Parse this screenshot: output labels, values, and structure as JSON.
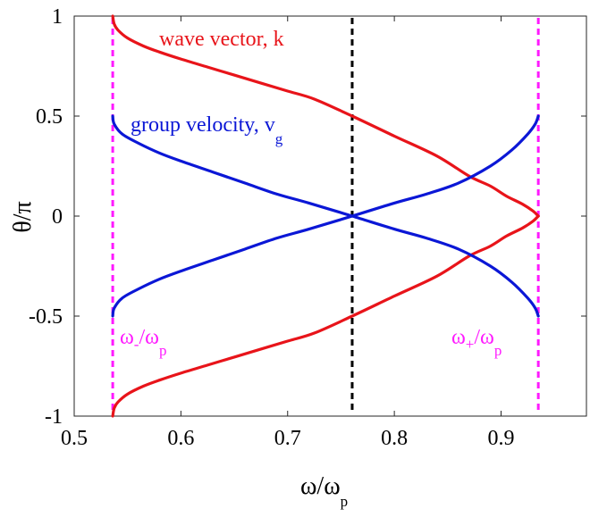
{
  "chart_data": {
    "type": "line",
    "xlabel": {
      "main": "ω/ω",
      "sub": "p"
    },
    "ylabel": {
      "main": "θ/π"
    },
    "xlim": [
      0.5,
      0.98
    ],
    "ylim": [
      -1,
      1
    ],
    "xticks": [
      0.5,
      0.6,
      0.7,
      0.8,
      0.9
    ],
    "xtick_labels": [
      "0.5",
      "0.6",
      "0.7",
      "0.8",
      "0.9"
    ],
    "yticks": [
      -1,
      -0.5,
      0,
      0.5,
      1
    ],
    "ytick_labels": [
      "-1",
      "-0.5",
      "0",
      "0.5",
      "1"
    ],
    "omega_minus": 0.5361,
    "omega_plus": 0.9349,
    "omega_mid": 0.7605,
    "colors": {
      "wave": "#e8141a",
      "group": "#0b17d6",
      "bound": "#ff19ff",
      "mid": "#000000"
    },
    "series": [
      {
        "name": "wave vector, k",
        "color": "#e8141a",
        "x": [
          0.5361,
          0.5375,
          0.541,
          0.55,
          0.565,
          0.58,
          0.6,
          0.625,
          0.65,
          0.675,
          0.7,
          0.725,
          0.7605,
          0.8,
          0.84,
          0.87,
          0.89,
          0.905,
          0.92,
          0.93,
          0.9349
        ],
        "y": [
          1.0,
          0.96,
          0.93,
          0.89,
          0.85,
          0.82,
          0.785,
          0.745,
          0.705,
          0.665,
          0.625,
          0.585,
          0.5,
          0.4,
          0.3,
          0.2,
          0.15,
          0.1,
          0.06,
          0.025,
          0.0
        ]
      },
      {
        "name": "wave vector, k (lower)",
        "color": "#e8141a",
        "x": [
          0.5361,
          0.5375,
          0.541,
          0.55,
          0.565,
          0.58,
          0.6,
          0.625,
          0.65,
          0.675,
          0.7,
          0.725,
          0.7605,
          0.8,
          0.84,
          0.87,
          0.89,
          0.905,
          0.92,
          0.93,
          0.9349
        ],
        "y": [
          -1.0,
          -0.96,
          -0.93,
          -0.89,
          -0.85,
          -0.82,
          -0.785,
          -0.745,
          -0.705,
          -0.665,
          -0.625,
          -0.585,
          -0.5,
          -0.4,
          -0.3,
          -0.2,
          -0.15,
          -0.1,
          -0.06,
          -0.025,
          0.0
        ]
      },
      {
        "name": "group velocity, v",
        "name_sub": "g",
        "color": "#0b17d6",
        "x": [
          0.5361,
          0.5375,
          0.545,
          0.56,
          0.58,
          0.6,
          0.63,
          0.66,
          0.69,
          0.72,
          0.7605,
          0.8,
          0.83,
          0.86,
          0.89,
          0.91,
          0.925,
          0.932,
          0.9349
        ],
        "y": [
          0.5,
          0.46,
          0.41,
          0.365,
          0.315,
          0.275,
          0.22,
          0.165,
          0.11,
          0.065,
          0.0,
          -0.065,
          -0.11,
          -0.165,
          -0.25,
          -0.33,
          -0.41,
          -0.46,
          -0.5
        ]
      },
      {
        "name": "group velocity (lower)",
        "color": "#0b17d6",
        "x": [
          0.5361,
          0.5375,
          0.545,
          0.56,
          0.58,
          0.6,
          0.63,
          0.66,
          0.69,
          0.72,
          0.7605,
          0.8,
          0.83,
          0.86,
          0.89,
          0.91,
          0.925,
          0.932,
          0.9349
        ],
        "y": [
          -0.5,
          -0.46,
          -0.41,
          -0.365,
          -0.315,
          -0.275,
          -0.22,
          -0.165,
          -0.11,
          -0.065,
          0.0,
          0.065,
          0.11,
          0.165,
          0.25,
          0.33,
          0.41,
          0.46,
          0.5
        ]
      }
    ],
    "annotations": [
      {
        "key": "wave",
        "text": "wave vector, k",
        "color": "#e8141a"
      },
      {
        "key": "group",
        "text": "group velocity, v",
        "sub": "g",
        "color": "#0b17d6"
      },
      {
        "key": "wminus",
        "main": "ω",
        "sub1": "-",
        "mid": "/ω",
        "sub2": "p",
        "color": "#ff19ff"
      },
      {
        "key": "wplus",
        "main": "ω",
        "sub1": "+",
        "mid": "/ω",
        "sub2": "p",
        "color": "#ff19ff"
      }
    ]
  }
}
